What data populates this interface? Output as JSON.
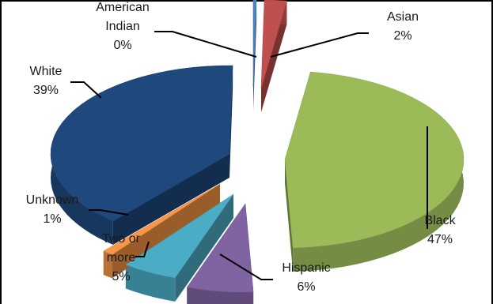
{
  "chart_data": {
    "type": "pie",
    "title": "",
    "style": "3d-exploded",
    "slices": [
      {
        "name": "American Indian",
        "label_lines": [
          "American",
          "Indian",
          "0%"
        ],
        "percent": 0,
        "color": "#4f81bd"
      },
      {
        "name": "Asian",
        "label_lines": [
          "Asian",
          "2%"
        ],
        "percent": 2,
        "color": "#c0504d"
      },
      {
        "name": "Black",
        "label_lines": [
          "Black",
          "47%"
        ],
        "percent": 47,
        "color": "#9bbb59"
      },
      {
        "name": "Hispanic",
        "label_lines": [
          "Hispanic",
          "6%"
        ],
        "percent": 6,
        "color": "#8064a2"
      },
      {
        "name": "Two or more",
        "label_lines": [
          "Two or",
          "more",
          "5%"
        ],
        "percent": 5,
        "color": "#4bacc6"
      },
      {
        "name": "Unknown",
        "label_lines": [
          "Unknown",
          "1%"
        ],
        "percent": 1,
        "color": "#f79646"
      },
      {
        "name": "White",
        "label_lines": [
          "White",
          "39%"
        ],
        "percent": 39,
        "color": "#1f497d"
      }
    ]
  }
}
